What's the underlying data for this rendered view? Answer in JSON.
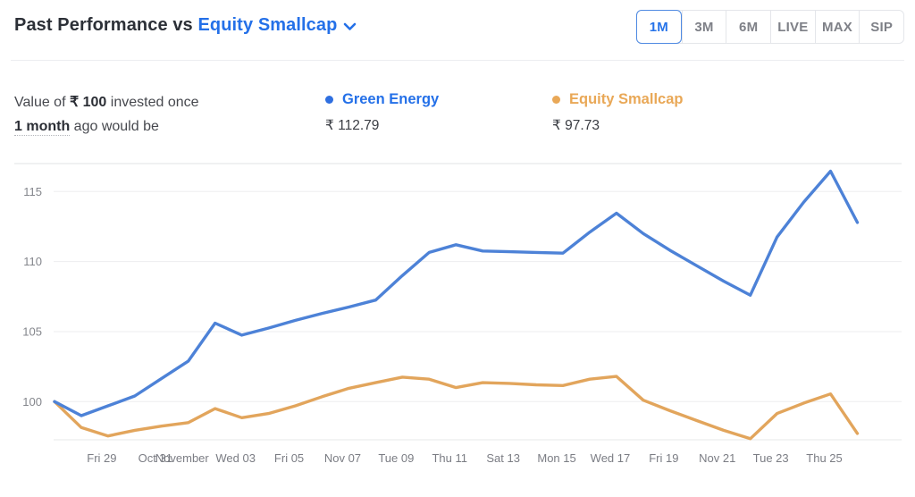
{
  "header": {
    "title_prefix": "Past Performance vs",
    "fund_selector": "Equity Smallcap",
    "accent_color": "#2470e8",
    "periods": [
      {
        "label": "1M",
        "active": true
      },
      {
        "label": "3M",
        "active": false
      },
      {
        "label": "6M",
        "active": false
      },
      {
        "label": "LIVE",
        "active": false
      },
      {
        "label": "MAX",
        "active": false
      },
      {
        "label": "SIP",
        "active": false
      }
    ]
  },
  "summary": {
    "prefix": "Value of",
    "currency": "₹",
    "amount": "100",
    "suffix": "invested once",
    "period_term": "1 month",
    "rest": "ago would be"
  },
  "legend": [
    {
      "name": "Green Energy",
      "value": "₹ 112.79",
      "name_color": "#2470e8",
      "dot_color": "#2f6fe0"
    },
    {
      "name": "Equity Smallcap",
      "value": "₹ 97.73",
      "name_color": "#e9a857",
      "dot_color": "#e9a857"
    }
  ],
  "chart_data": {
    "type": "line",
    "title": "",
    "xlabel": "",
    "ylabel": "",
    "ylim": [
      97.3,
      117.0
    ],
    "yticks": [
      100,
      105,
      110,
      115
    ],
    "grid": true,
    "legend_position": "top",
    "xticks": [
      {
        "i": 2,
        "label": "Fri 29"
      },
      {
        "i": 4,
        "label": "Oct 31"
      },
      {
        "i": 5,
        "label": "November"
      },
      {
        "i": 7,
        "label": "Wed 03"
      },
      {
        "i": 9,
        "label": "Fri 05"
      },
      {
        "i": 11,
        "label": "Nov 07"
      },
      {
        "i": 13,
        "label": "Tue 09"
      },
      {
        "i": 15,
        "label": "Thu 11"
      },
      {
        "i": 17,
        "label": "Sat 13"
      },
      {
        "i": 19,
        "label": "Mon 15"
      },
      {
        "i": 21,
        "label": "Wed 17"
      },
      {
        "i": 23,
        "label": "Fri 19"
      },
      {
        "i": 25,
        "label": "Nov 21"
      },
      {
        "i": 27,
        "label": "Tue 23"
      },
      {
        "i": 29,
        "label": "Thu 25"
      }
    ],
    "series": [
      {
        "name": "Green Energy",
        "color": "#4d82d7",
        "values": [
          100,
          99.0,
          99.7,
          100.4,
          101.65,
          102.9,
          105.6,
          104.75,
          105.25,
          105.8,
          106.3,
          106.75,
          107.25,
          109.0,
          110.65,
          111.2,
          110.75,
          110.7,
          110.65,
          110.6,
          112.1,
          113.45,
          112.0,
          110.8,
          109.7,
          108.6,
          107.6,
          111.75,
          114.25,
          116.45,
          112.79
        ]
      },
      {
        "name": "Equity Smallcap",
        "color": "#e2a55c",
        "values": [
          100,
          98.15,
          97.55,
          97.95,
          98.25,
          98.5,
          99.5,
          98.85,
          99.15,
          99.7,
          100.35,
          100.95,
          101.35,
          101.75,
          101.6,
          101.0,
          101.35,
          101.3,
          101.2,
          101.15,
          101.6,
          101.8,
          100.1,
          99.35,
          98.65,
          97.95,
          97.35,
          99.15,
          99.9,
          100.55,
          97.73
        ]
      }
    ]
  }
}
